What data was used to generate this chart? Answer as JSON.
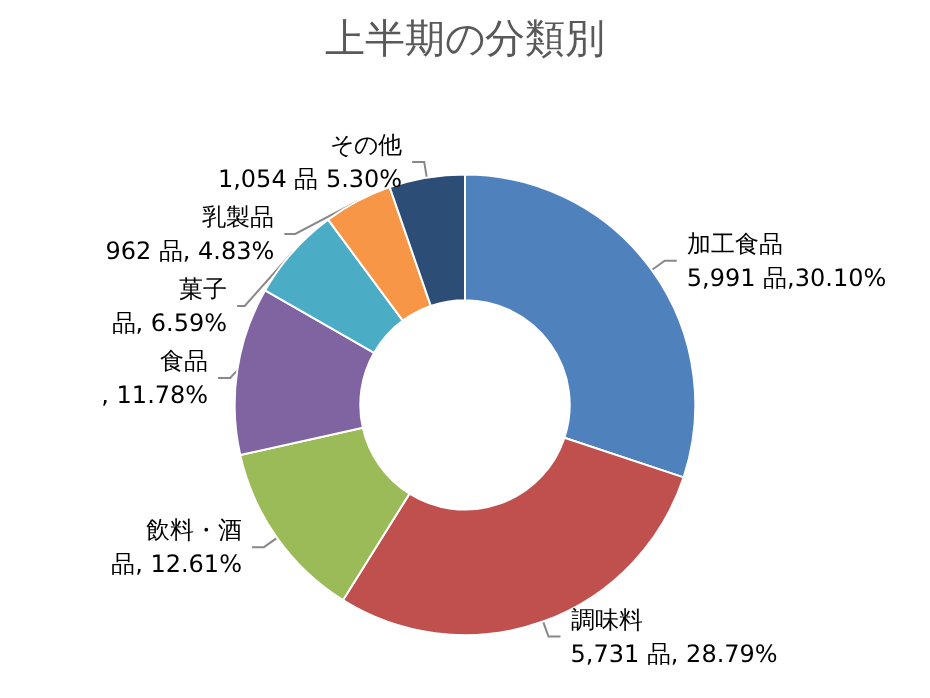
{
  "chart_data": {
    "type": "donut",
    "title": "上半期の分類別",
    "categories": [
      "加工食品",
      "調味料",
      "飲料・酒",
      "食品",
      "菓子",
      "乳製品",
      "その他"
    ],
    "values": [
      30.1,
      28.79,
      12.61,
      11.78,
      6.59,
      4.83,
      5.3
    ],
    "value_labels": [
      "5,991 品,30.10%",
      "5,731 品, 28.79%",
      "品, 12.61%",
      ", 11.78%",
      "品, 6.59%",
      "962 品, 4.83%",
      "1,054 品 5.30%"
    ],
    "colors": [
      "#4f81bd",
      "#c0504d",
      "#9bbb59",
      "#8064a2",
      "#4bacc6",
      "#f79646",
      "#2c4d75"
    ],
    "legend": false
  }
}
